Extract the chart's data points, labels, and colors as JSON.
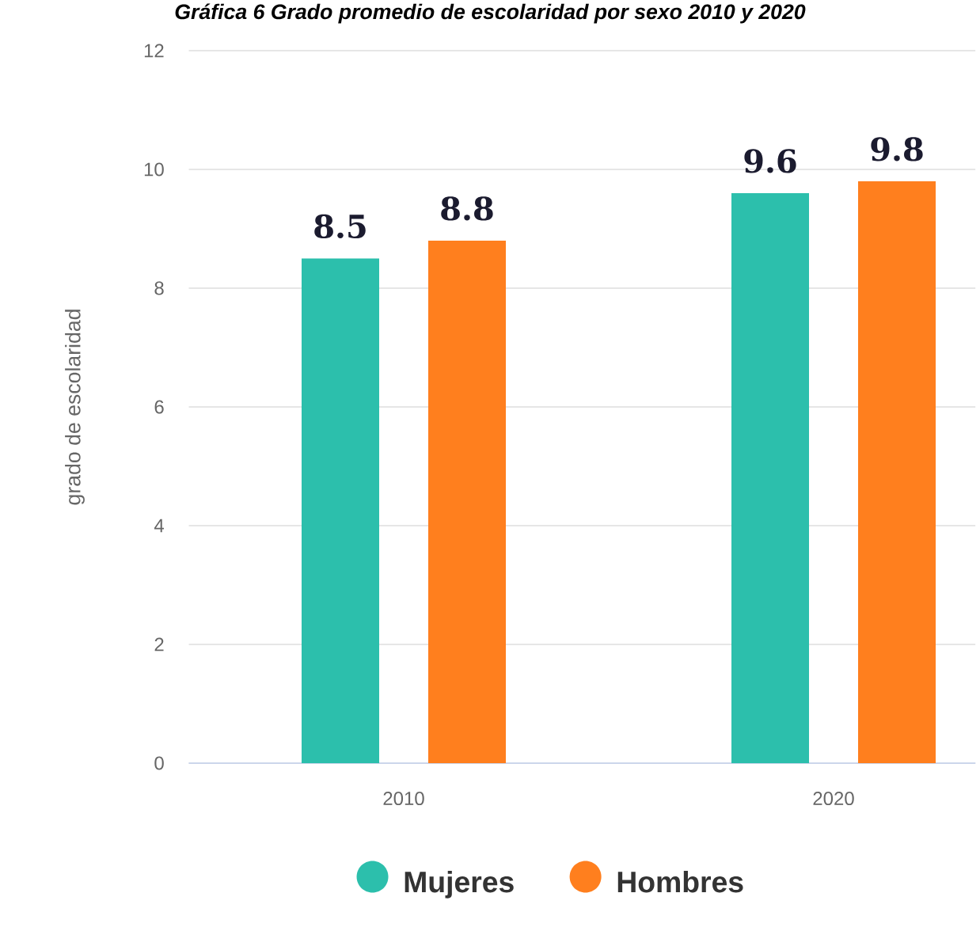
{
  "chart_data": {
    "type": "bar",
    "title": "Gráfica 6 Grado promedio de escolaridad por sexo 2010 y 2020",
    "ylabel": "grado de escolaridad",
    "categories": [
      "2010",
      "2020"
    ],
    "series": [
      {
        "name": "Mujeres",
        "color": "#2cbfac",
        "values": [
          8.5,
          9.6
        ]
      },
      {
        "name": "Hombres",
        "color": "#ff7f1e",
        "values": [
          8.8,
          9.8
        ]
      }
    ],
    "ylim": [
      0,
      12
    ],
    "yticks": [
      0,
      2,
      4,
      6,
      8,
      10,
      12
    ],
    "grid": "y",
    "legend": "bottom",
    "data_labels": true
  }
}
